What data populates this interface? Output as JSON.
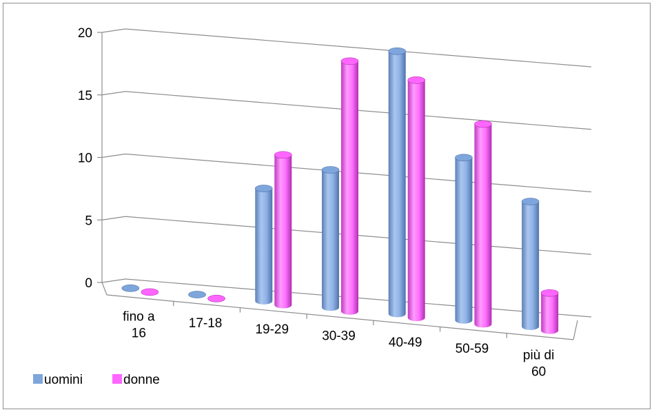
{
  "chart_data": {
    "type": "bar",
    "subtype": "3d-cylinder",
    "title": "",
    "xlabel": "",
    "ylabel": "",
    "ylim": [
      0,
      20
    ],
    "yticks": [
      "0",
      "5",
      "10",
      "15",
      "20"
    ],
    "grid": true,
    "legend_position": "bottom-left",
    "categories": [
      [
        "fino a",
        "16"
      ],
      [
        "17-18"
      ],
      [
        "19-29"
      ],
      [
        "30-39"
      ],
      [
        "40-49"
      ],
      [
        "50-59"
      ],
      [
        "più di",
        "60"
      ]
    ],
    "series": [
      {
        "name": "uomini",
        "color": "#7ea6dc",
        "values": [
          0,
          0,
          9,
          11,
          21,
          13,
          10
        ]
      },
      {
        "name": "donne",
        "color": "#ff66ff",
        "values": [
          0,
          0,
          12,
          20,
          19,
          16,
          3
        ]
      }
    ]
  }
}
